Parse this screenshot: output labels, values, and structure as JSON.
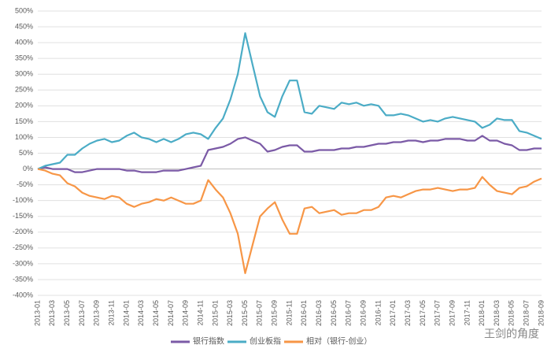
{
  "chart_data": {
    "type": "line",
    "categories": [
      "2013-01",
      null,
      "2013-03",
      null,
      "2013-05",
      null,
      "2013-07",
      null,
      "2013-09",
      null,
      "2013-11",
      null,
      "2014-01",
      null,
      "2014-03",
      null,
      "2014-05",
      null,
      "2014-07",
      null,
      "2014-09",
      null,
      "2014-11",
      null,
      "2015-01",
      null,
      "2015-03",
      null,
      "2015-05",
      null,
      "2015-07",
      null,
      "2015-09",
      null,
      "2015-11",
      null,
      "2016-01",
      null,
      "2016-03",
      null,
      "2016-05",
      null,
      "2016-07",
      null,
      "2016-09",
      null,
      "2016-11",
      null,
      "2017-01",
      null,
      "2017-03",
      null,
      "2017-05",
      null,
      "2017-07",
      null,
      "2017-09",
      null,
      "2017-11",
      null,
      "2018-01",
      null,
      "2018-03",
      null,
      "2018-05",
      null,
      "2018-07",
      null,
      "2018-09"
    ],
    "series": [
      {
        "name": "银行指数",
        "color": "#7b5aa6",
        "values": [
          0,
          5,
          0,
          0,
          0,
          -10,
          -10,
          -5,
          0,
          0,
          0,
          0,
          -5,
          -5,
          -10,
          -10,
          -10,
          -5,
          -5,
          -5,
          0,
          5,
          10,
          60,
          65,
          70,
          80,
          95,
          100,
          90,
          80,
          55,
          60,
          70,
          75,
          75,
          55,
          55,
          60,
          60,
          60,
          65,
          65,
          70,
          70,
          75,
          80,
          80,
          85,
          85,
          90,
          90,
          85,
          90,
          90,
          95,
          95,
          95,
          90,
          90,
          105,
          90,
          90,
          80,
          75,
          60,
          60,
          65,
          65
        ]
      },
      {
        "name": "创业板指",
        "color": "#4bacc6",
        "values": [
          0,
          10,
          15,
          20,
          45,
          45,
          65,
          80,
          90,
          95,
          85,
          90,
          105,
          115,
          100,
          95,
          85,
          95,
          85,
          95,
          110,
          115,
          110,
          95,
          130,
          160,
          220,
          300,
          430,
          330,
          230,
          180,
          165,
          230,
          280,
          280,
          180,
          175,
          200,
          195,
          190,
          210,
          205,
          210,
          200,
          205,
          200,
          170,
          170,
          175,
          170,
          160,
          150,
          155,
          150,
          160,
          165,
          160,
          155,
          150,
          130,
          140,
          160,
          155,
          155,
          120,
          115,
          105,
          95
        ]
      },
      {
        "name": "相对（银行-创业）",
        "color": "#f79646",
        "values": [
          0,
          -5,
          -15,
          -20,
          -45,
          -55,
          -75,
          -85,
          -90,
          -95,
          -85,
          -90,
          -110,
          -120,
          -110,
          -105,
          -95,
          -100,
          -90,
          -100,
          -110,
          -110,
          -100,
          -35,
          -65,
          -90,
          -140,
          -205,
          -330,
          -240,
          -150,
          -125,
          -105,
          -160,
          -205,
          -205,
          -125,
          -120,
          -140,
          -135,
          -130,
          -145,
          -140,
          -140,
          -130,
          -130,
          -120,
          -90,
          -85,
          -90,
          -80,
          -70,
          -65,
          -65,
          -60,
          -65,
          -70,
          -65,
          -65,
          -60,
          -25,
          -50,
          -70,
          -75,
          -80,
          -60,
          -55,
          -40,
          -30
        ]
      }
    ],
    "ylim": [
      -400,
      500
    ],
    "yticks": [
      {
        "value": -400,
        "label": "-400%"
      },
      {
        "value": -350,
        "label": "-350%"
      },
      {
        "value": -300,
        "label": "-300%"
      },
      {
        "value": -250,
        "label": "-250%"
      },
      {
        "value": -200,
        "label": "-200%"
      },
      {
        "value": -150,
        "label": "-150%"
      },
      {
        "value": -100,
        "label": "-100%"
      },
      {
        "value": -50,
        "label": "-50%"
      },
      {
        "value": 0,
        "label": "0%"
      },
      {
        "value": 50,
        "label": "50%"
      },
      {
        "value": 100,
        "label": "100%"
      },
      {
        "value": 150,
        "label": "150%"
      },
      {
        "value": 200,
        "label": "200%"
      },
      {
        "value": 250,
        "label": "250%"
      },
      {
        "value": 300,
        "label": "300%"
      },
      {
        "value": 350,
        "label": "350%"
      },
      {
        "value": 400,
        "label": "400%"
      },
      {
        "value": 450,
        "label": "450%"
      },
      {
        "value": 500,
        "label": "500%"
      }
    ],
    "grid": true,
    "legend": "bottom",
    "watermark": "王剑的角度"
  }
}
